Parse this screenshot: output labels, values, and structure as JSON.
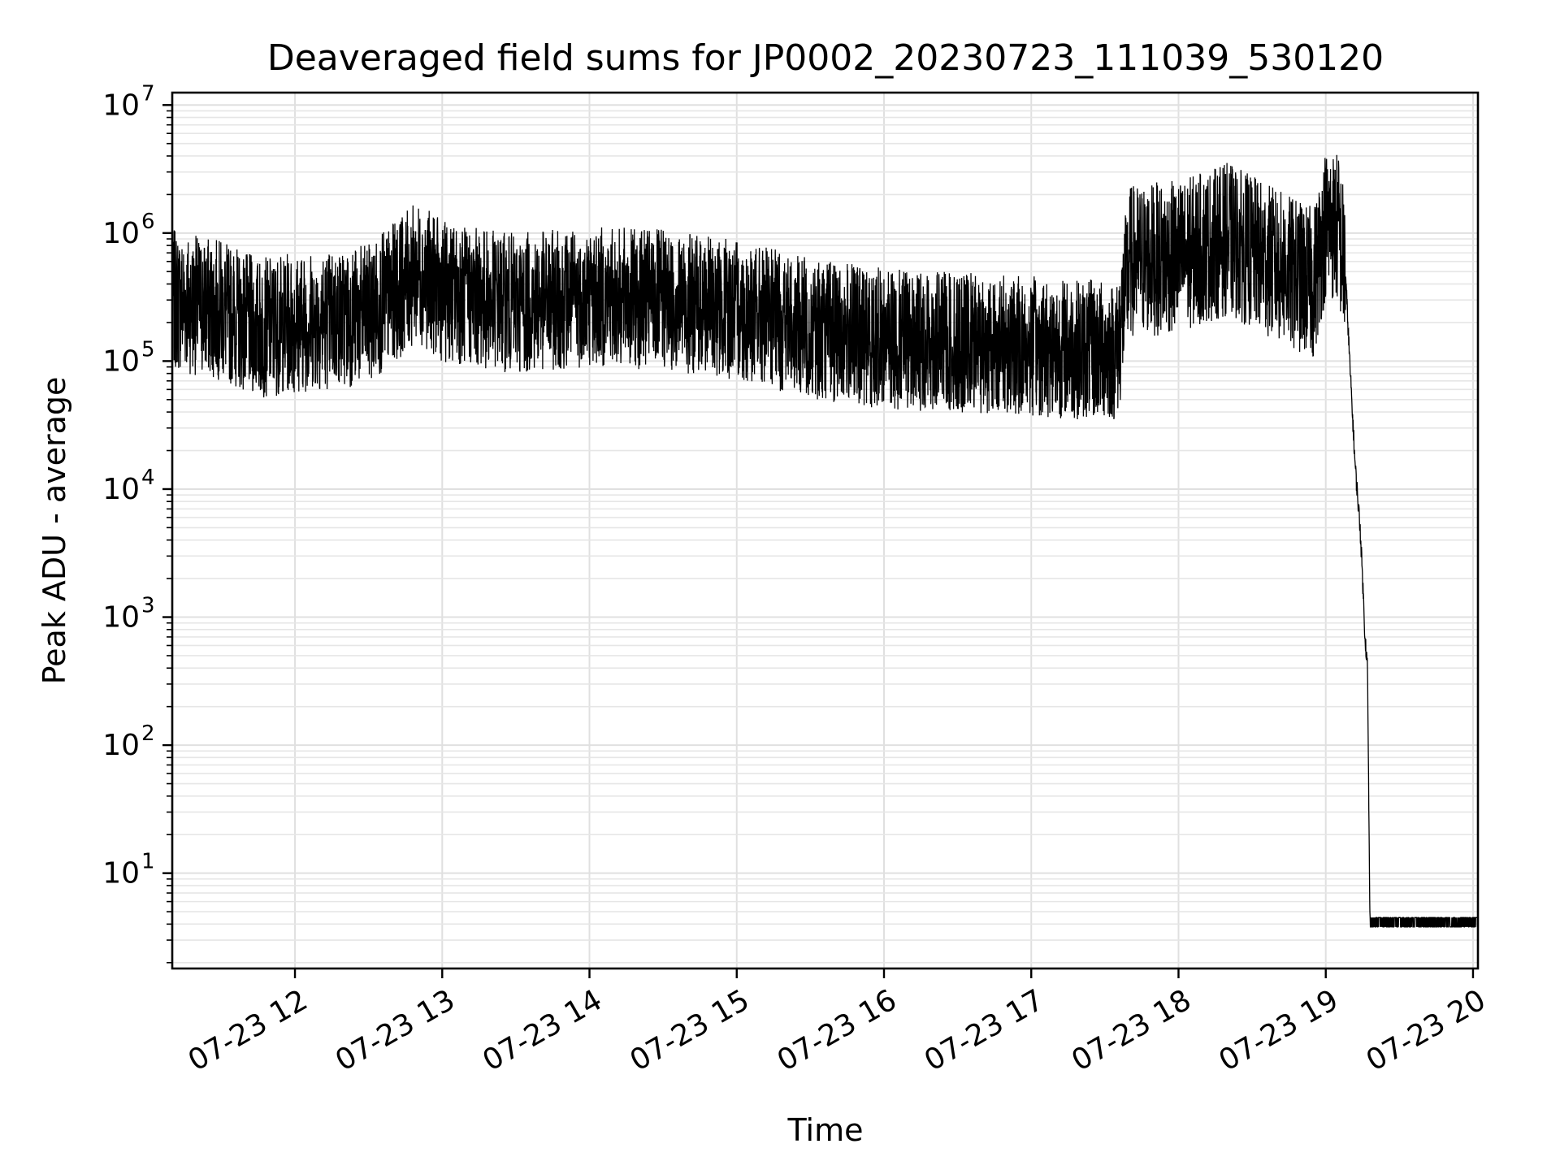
{
  "chart_data": {
    "type": "line",
    "title": "Deaveraged field sums for JP0002_20230723_111039_530120",
    "xlabel": "Time",
    "ylabel": "Peak ADU - average",
    "x_range": [
      "2023-07-23 11:10",
      "2023-07-23 20:02"
    ],
    "x_ticks": [
      "07-23 12",
      "07-23 13",
      "07-23 14",
      "07-23 15",
      "07-23 16",
      "07-23 17",
      "07-23 18",
      "07-23 19",
      "07-23 20"
    ],
    "y_scale": "log",
    "ylim": [
      1.8,
      12500000
    ],
    "y_ticks": [
      {
        "base": "10",
        "exp": "1"
      },
      {
        "base": "10",
        "exp": "2"
      },
      {
        "base": "10",
        "exp": "3"
      },
      {
        "base": "10",
        "exp": "4"
      },
      {
        "base": "10",
        "exp": "5"
      },
      {
        "base": "10",
        "exp": "6"
      },
      {
        "base": "10",
        "exp": "7"
      }
    ],
    "grid": true,
    "series": [
      {
        "color": "#000000",
        "points": [
          [
            "2023-07-23 11:10",
            300000
          ],
          [
            "2023-07-23 11:30",
            250000
          ],
          [
            "2023-07-23 11:45",
            180000
          ],
          [
            "2023-07-23 12:00",
            200000
          ],
          [
            "2023-07-23 12:30",
            230000
          ],
          [
            "2023-07-23 12:50",
            500000
          ],
          [
            "2023-07-23 13:00",
            350000
          ],
          [
            "2023-07-23 13:30",
            280000
          ],
          [
            "2023-07-23 14:00",
            320000
          ],
          [
            "2023-07-23 14:30",
            300000
          ],
          [
            "2023-07-23 15:00",
            250000
          ],
          [
            "2023-07-23 15:30",
            180000
          ],
          [
            "2023-07-23 16:00",
            150000
          ],
          [
            "2023-07-23 16:30",
            140000
          ],
          [
            "2023-07-23 17:00",
            130000
          ],
          [
            "2023-07-23 17:35",
            120000
          ],
          [
            "2023-07-23 17:40",
            600000
          ],
          [
            "2023-07-23 18:00",
            650000
          ],
          [
            "2023-07-23 18:20",
            900000
          ],
          [
            "2023-07-23 18:45",
            500000
          ],
          [
            "2023-07-23 18:55",
            400000
          ],
          [
            "2023-07-23 19:00",
            1200000
          ],
          [
            "2023-07-23 19:05",
            1100000
          ],
          [
            "2023-07-23 19:08",
            500000
          ],
          [
            "2023-07-23 19:10",
            80000
          ],
          [
            "2023-07-23 19:12",
            15000
          ],
          [
            "2023-07-23 19:14",
            5000
          ],
          [
            "2023-07-23 19:15",
            2000
          ],
          [
            "2023-07-23 19:16",
            700
          ],
          [
            "2023-07-23 19:17",
            400
          ],
          [
            "2023-07-23 19:18",
            4
          ],
          [
            "2023-07-23 20:02",
            4
          ]
        ]
      }
    ]
  }
}
